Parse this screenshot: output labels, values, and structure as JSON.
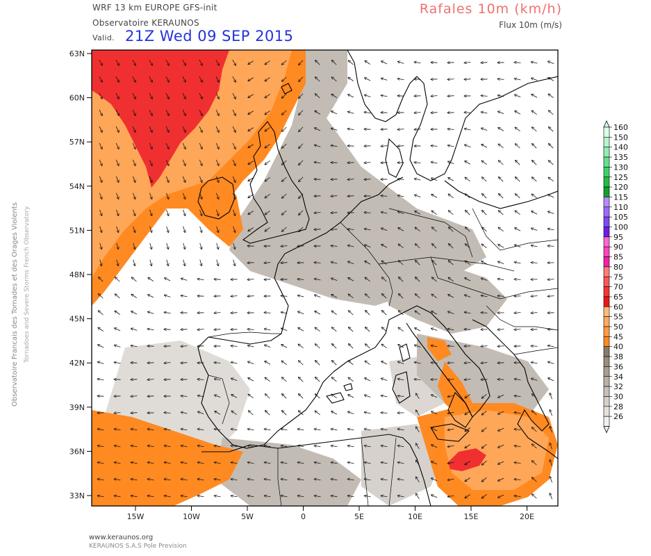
{
  "header": {
    "model": "WRF 13 km EUROPE  GFS-init",
    "org": "Observatoire KERAUNOS",
    "valid_label": "Valid.",
    "valid_value": "21Z Wed 09 SEP 2015",
    "title": "Rafales 10m (km/h)",
    "subtitle": "Flux 10m (m/s)"
  },
  "side_text": {
    "line1": "Observatoire Francais des Tornades et des Orages Violents",
    "line2": "Tornadoes and Severe Storms French Observatory"
  },
  "footer": {
    "url": "www.keraunos.org",
    "company": "KERAUNOS S.A.S Pole Prevision"
  },
  "axes": {
    "lat_labels": [
      "63N",
      "60N",
      "57N",
      "54N",
      "51N",
      "48N",
      "45N",
      "42N",
      "39N",
      "36N",
      "33N"
    ],
    "lon_labels": [
      "15W",
      "10W",
      "5W",
      "0",
      "5E",
      "10E",
      "15E",
      "20E"
    ]
  },
  "legend": {
    "levels": [
      {
        "label": "160",
        "color": "#dcffe8"
      },
      {
        "label": "150",
        "color": "#b8f5cc"
      },
      {
        "label": "140",
        "color": "#90eeb0"
      },
      {
        "label": "135",
        "color": "#66e08a"
      },
      {
        "label": "130",
        "color": "#3fd06a"
      },
      {
        "label": "125",
        "color": "#22bb44"
      },
      {
        "label": "120",
        "color": "#14a028"
      },
      {
        "label": "115",
        "color": "#b48cff"
      },
      {
        "label": "110",
        "color": "#9a6cf8"
      },
      {
        "label": "105",
        "color": "#8048f0"
      },
      {
        "label": "100",
        "color": "#6a1ee6"
      },
      {
        "label": "95",
        "color": "#ff66cc"
      },
      {
        "label": "90",
        "color": "#ff44bb"
      },
      {
        "label": "85",
        "color": "#f020a8"
      },
      {
        "label": "80",
        "color": "#ff7a7a"
      },
      {
        "label": "75",
        "color": "#ff5555"
      },
      {
        "label": "70",
        "color": "#f43636"
      },
      {
        "label": "65",
        "color": "#e81818"
      },
      {
        "label": "60",
        "color": "#ffbb78"
      },
      {
        "label": "55",
        "color": "#ffaa5e"
      },
      {
        "label": "50",
        "color": "#ff9a44"
      },
      {
        "label": "45",
        "color": "#ff8a22"
      },
      {
        "label": "40",
        "color": "#8a7a6a"
      },
      {
        "label": "38",
        "color": "#9a8c7e"
      },
      {
        "label": "36",
        "color": "#aa9e92"
      },
      {
        "label": "34",
        "color": "#bab0a6"
      },
      {
        "label": "32",
        "color": "#c8c0b8"
      },
      {
        "label": "30",
        "color": "#d6d0ca"
      },
      {
        "label": "28",
        "color": "#e4e0dc"
      },
      {
        "label": "26",
        "color": "#f2f0ee"
      }
    ]
  }
}
